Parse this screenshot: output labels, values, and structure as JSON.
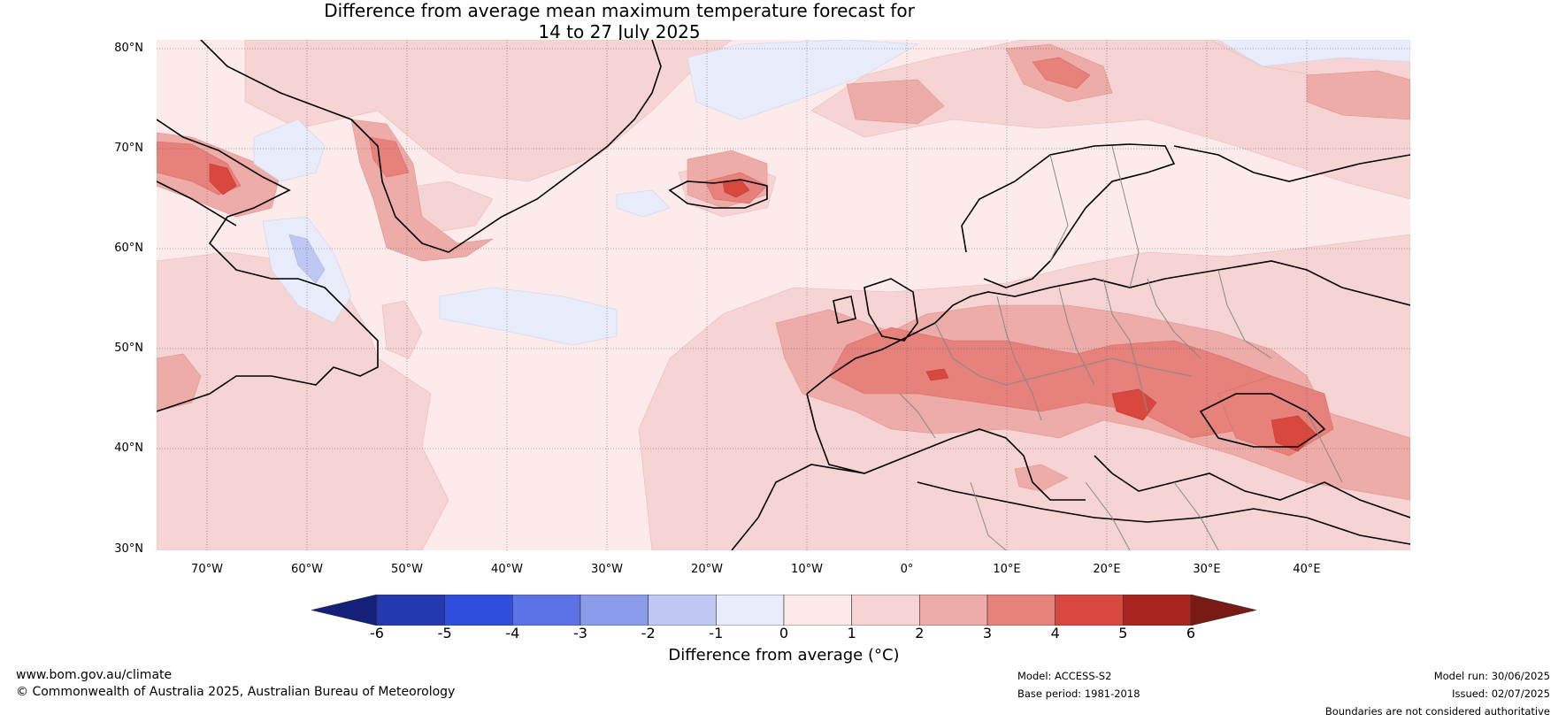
{
  "title_line1": "Difference from average mean maximum temperature forecast for",
  "title_line2": "14 to 27 July 2025",
  "lat_labels": [
    "80°N",
    "70°N",
    "60°N",
    "50°N",
    "40°N",
    "30°N"
  ],
  "lon_labels": [
    "70°W",
    "60°W",
    "50°W",
    "40°W",
    "30°W",
    "20°W",
    "10°W",
    "0°",
    "10°E",
    "20°E",
    "30°E",
    "40°E"
  ],
  "colorbar": {
    "label": "Difference from average (°C)",
    "ticks": [
      "-6",
      "-5",
      "-4",
      "-3",
      "-2",
      "-1",
      "0",
      "1",
      "2",
      "3",
      "4",
      "5",
      "6"
    ],
    "colors": [
      "#14207a",
      "#2438b0",
      "#2f4ede",
      "#5c73e6",
      "#8b9cea",
      "#bfc8f2",
      "#e9ecfb",
      "#fcebea",
      "#f6d4d3",
      "#eeaca9",
      "#e6817b",
      "#d9483f",
      "#a8261f",
      "#7a1a15"
    ]
  },
  "footer": {
    "website": "www.bom.gov.au/climate",
    "copyright": "© Commonwealth of Australia 2025, Australian Bureau of Meteorology",
    "model": "Model: ACCESS-S2",
    "base_period": "Base period: 1981-2018",
    "model_run": "Model run: 30/06/2025",
    "issued": "Issued: 02/07/2025",
    "disclaimer": "Boundaries are not considered authoritative"
  }
}
